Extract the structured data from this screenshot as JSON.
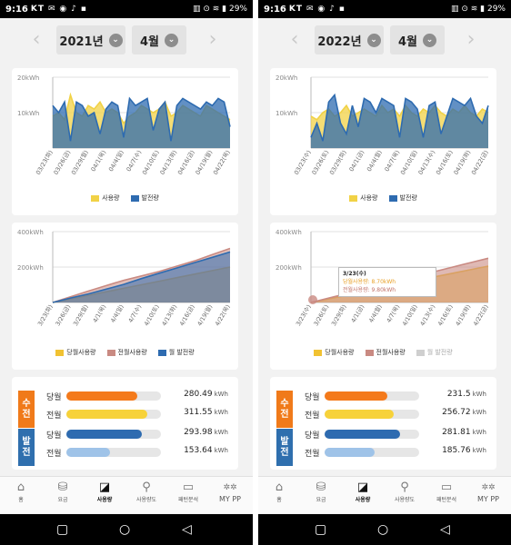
{
  "status_bar": {
    "time": "9:16",
    "carrier": "KT",
    "battery": "29%"
  },
  "tabs": [
    {
      "label": "홈",
      "icon": "home-icon"
    },
    {
      "label": "요금",
      "icon": "coins-icon"
    },
    {
      "label": "사용량",
      "icon": "usage-chart-icon"
    },
    {
      "label": "사용량도",
      "icon": "plant-icon"
    },
    {
      "label": "패턴분석",
      "icon": "monitor-icon"
    },
    {
      "label": "MY PP",
      "icon": "mypp-icon"
    }
  ],
  "active_tab_label": "사용량",
  "screens": [
    {
      "year": "2021년",
      "month": "4월",
      "daily_chart": {
        "type": "area",
        "ylabels": [
          "20kWh",
          "10kWh"
        ],
        "ylim": [
          0,
          20
        ],
        "xlabels": [
          "03/23(화)",
          "03/26(금)",
          "03/29(월)",
          "04/1(목)",
          "04/4(일)",
          "04/7(수)",
          "04/10(토)",
          "04/13(화)",
          "04/16(금)",
          "04/19(월)",
          "04/22(목)"
        ],
        "series": [
          {
            "name": "사용량",
            "color": "#f1d246",
            "values": [
              9,
              10,
              8,
              15,
              10,
              9,
              12,
              11,
              13,
              10,
              11,
              10,
              7,
              9,
              10,
              12,
              11,
              10,
              11,
              13,
              9,
              10,
              12,
              11,
              10,
              9,
              12,
              11,
              10,
              9,
              8
            ]
          },
          {
            "name": "발전량",
            "color": "#2e6bb0",
            "values": [
              12,
              10,
              13,
              2,
              13,
              12,
              9,
              10,
              4,
              11,
              13,
              12,
              3,
              14,
              12,
              13,
              14,
              5,
              11,
              13,
              2,
              12,
              14,
              13,
              12,
              11,
              13,
              12,
              14,
              13,
              6
            ]
          }
        ]
      },
      "cumulative_chart": {
        "type": "area",
        "ylabels": [
          "400kWh",
          "200kWh"
        ],
        "ylim": [
          0,
          400
        ],
        "xlabels": [
          "3/23(화)",
          "3/26(금)",
          "3/29(월)",
          "4/1(목)",
          "4/4(일)",
          "4/7(수)",
          "4/10(토)",
          "4/13(화)",
          "4/16(금)",
          "4/19(월)",
          "4/22(목)"
        ],
        "series": [
          {
            "name": "당월사용량",
            "color": "#f1c232",
            "values": [
              0,
              20,
              40,
              60,
              80,
              100,
              120,
              140,
              160,
              180,
              200
            ]
          },
          {
            "name": "전월사용량",
            "color": "#c98a82",
            "values": [
              0,
              32,
              64,
              95,
              125,
              150,
              175,
              205,
              235,
              270,
              305
            ]
          },
          {
            "name": "월 발전량",
            "color": "#2e6bb0",
            "values": [
              0,
              25,
              48,
              75,
              102,
              135,
              165,
              195,
              225,
              255,
              285
            ]
          }
        ]
      },
      "summary": {
        "receive_badge": [
          "수",
          "전"
        ],
        "generate_badge": [
          "발",
          "전"
        ],
        "unit": "kWh",
        "rows": [
          {
            "label": "당월",
            "value": "280.49",
            "ratio": 0.75,
            "color": "#f47a1b"
          },
          {
            "label": "전월",
            "value": "311.55",
            "ratio": 0.86,
            "color": "#f7d23a"
          },
          {
            "label": "당월",
            "value": "293.98",
            "ratio": 0.8,
            "color": "#2e6bb0"
          },
          {
            "label": "전월",
            "value": "153.64",
            "ratio": 0.46,
            "color": "#9fc3e8"
          }
        ]
      }
    },
    {
      "year": "2022년",
      "month": "4월",
      "daily_chart": {
        "type": "area",
        "ylabels": [
          "20kWh",
          "10kWh"
        ],
        "ylim": [
          0,
          20
        ],
        "xlabels": [
          "03/23(수)",
          "03/26(토)",
          "03/29(화)",
          "04/1(금)",
          "04/4(월)",
          "04/7(목)",
          "04/10(일)",
          "04/13(수)",
          "04/16(토)",
          "04/19(화)",
          "04/22(금)"
        ],
        "series": [
          {
            "name": "사용량",
            "color": "#f1d246",
            "values": [
              9,
              8,
              10,
              11,
              9,
              10,
              12,
              9,
              10,
              11,
              10,
              9,
              12,
              10,
              11,
              9,
              12,
              10,
              9,
              11,
              10,
              12,
              10,
              9,
              11,
              10,
              12,
              10,
              9,
              11,
              10
            ]
          },
          {
            "name": "발전량",
            "color": "#2e6bb0",
            "values": [
              3,
              7,
              2,
              13,
              15,
              7,
              4,
              12,
              6,
              14,
              13,
              10,
              14,
              13,
              12,
              3,
              14,
              13,
              11,
              3,
              12,
              13,
              4,
              9,
              14,
              13,
              12,
              14,
              9,
              7,
              12
            ]
          }
        ]
      },
      "cumulative_chart": {
        "type": "area",
        "ylabels": [
          "400kWh",
          "200kWh"
        ],
        "ylim": [
          0,
          400
        ],
        "xlabels": [
          "3/23(수)",
          "3/26(토)",
          "3/29(화)",
          "4/1(금)",
          "4/4(월)",
          "4/7(목)",
          "4/10(일)",
          "4/13(수)",
          "4/16(토)",
          "4/19(화)",
          "4/22(금)"
        ],
        "series": [
          {
            "name": "당월사용량",
            "color": "#f1c232",
            "values": [
              0,
              20,
              40,
              60,
              85,
              105,
              125,
              145,
              165,
              185,
              205
            ]
          },
          {
            "name": "전월사용량",
            "color": "#c98a82",
            "values": [
              0,
              25,
              50,
              75,
              100,
              125,
              150,
              175,
              200,
              225,
              250
            ]
          },
          {
            "name": "월 발전량",
            "color": "#cfcfcf",
            "values": []
          }
        ]
      },
      "tooltip": {
        "date": "3/23(수)",
        "line1": "당월사용량: 8.70kWh",
        "line2": "전월사용량: 9.80kWh"
      },
      "summary": {
        "receive_badge": [
          "수",
          "전"
        ],
        "generate_badge": [
          "발",
          "전"
        ],
        "unit": "kWh",
        "rows": [
          {
            "label": "당월",
            "value": "231.5",
            "ratio": 0.66,
            "color": "#f47a1b"
          },
          {
            "label": "전월",
            "value": "256.72",
            "ratio": 0.73,
            "color": "#f7d23a"
          },
          {
            "label": "당월",
            "value": "281.81",
            "ratio": 0.8,
            "color": "#2e6bb0"
          },
          {
            "label": "전월",
            "value": "185.76",
            "ratio": 0.53,
            "color": "#9fc3e8"
          }
        ]
      }
    }
  ]
}
